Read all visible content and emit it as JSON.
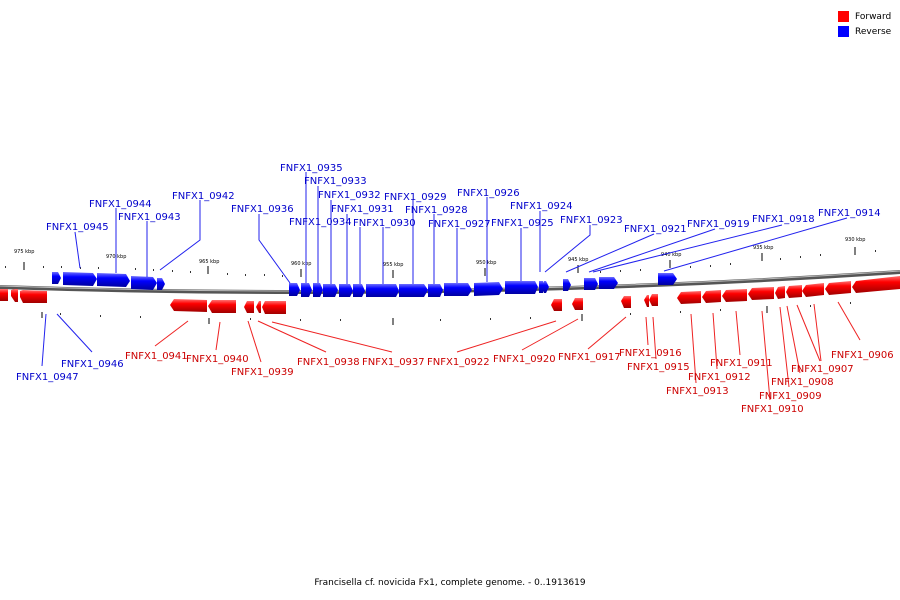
{
  "legend": {
    "forward": {
      "label": "Forward",
      "color": "#ff0000"
    },
    "reverse": {
      "label": "Reverse",
      "color": "#0000ff"
    }
  },
  "caption": "Francisella cf. novicida Fx1, complete genome. - 0..1913619",
  "ruler": {
    "labels": [
      "975 kbp",
      "970 kbp",
      "965 kbp",
      "960 kbp",
      "955 kbp",
      "950 kbp",
      "945 kbp",
      "940 kbp",
      "935 kbp",
      "930 kbp"
    ]
  },
  "colors": {
    "forward_label": "#cc0000",
    "reverse_label": "#0000cc",
    "forward_leader": "#ee2222",
    "reverse_leader": "#2222ee"
  },
  "reverse_genes": [
    "FNFX1_0935",
    "FNFX1_0933",
    "FNFX1_0932",
    "FNFX1_0929",
    "FNFX1_0926",
    "FNFX1_0944",
    "FNFX1_0942",
    "FNFX1_0931",
    "FNFX1_0928",
    "FNFX1_0924",
    "FNFX1_0936",
    "FNFX1_0943",
    "FNFX1_0934",
    "FNFX1_0930",
    "FNFX1_0927",
    "FNFX1_0925",
    "FNFX1_0923",
    "FNFX1_0918",
    "FNFX1_0914",
    "FNFX1_0945",
    "FNFX1_0921",
    "FNFX1_0919",
    "FNFX1_0946",
    "FNFX1_0947"
  ],
  "forward_genes": [
    "FNFX1_0941",
    "FNFX1_0940",
    "FNFX1_0939",
    "FNFX1_0938",
    "FNFX1_0937",
    "FNFX1_0922",
    "FNFX1_0920",
    "FNFX1_0917",
    "FNFX1_0916",
    "FNFX1_0915",
    "FNFX1_0913",
    "FNFX1_0912",
    "FNFX1_0911",
    "FNFX1_0910",
    "FNFX1_0909",
    "FNFX1_0908",
    "FNFX1_0907",
    "FNFX1_0906"
  ]
}
